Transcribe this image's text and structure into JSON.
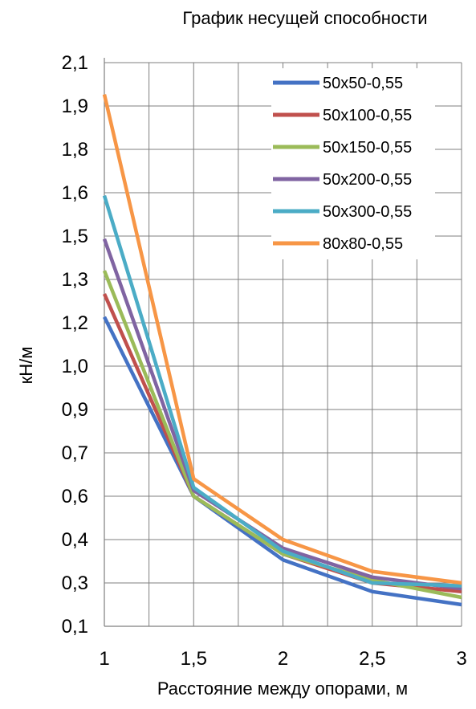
{
  "chart_data": {
    "type": "line",
    "title": "График несущей способности",
    "xlabel": "Расстояние между опорами, м",
    "ylabel": "кН/м",
    "x": [
      1,
      1.5,
      2,
      2.5,
      3
    ],
    "x_tick_labels": [
      "1",
      "1,5",
      "2",
      "2,5",
      "3"
    ],
    "xlim": [
      1,
      3
    ],
    "y_tick_labels": [
      "0,1",
      "0,3",
      "0,4",
      "0,6",
      "0,7",
      "0,9",
      "1,0",
      "1,2",
      "1,3",
      "1,5",
      "1,6",
      "1,8",
      "1,9",
      "2,1"
    ],
    "y_tick_values": [
      0.1,
      0.25,
      0.4,
      0.55,
      0.7,
      0.85,
      1.0,
      1.15,
      1.3,
      1.45,
      1.6,
      1.75,
      1.9,
      2.05
    ],
    "ylim": [
      0.1,
      2.05
    ],
    "grid": true,
    "legend_position": "top-right",
    "series": [
      {
        "name": "50x50-0,55",
        "color": "#4472C4",
        "values": [
          1.17,
          0.55,
          0.33,
          0.22,
          0.175
        ]
      },
      {
        "name": "50x100-0,55",
        "color": "#C0504D",
        "values": [
          1.25,
          0.55,
          0.35,
          0.25,
          0.22
        ]
      },
      {
        "name": "50x150-0,55",
        "color": "#9BBB59",
        "values": [
          1.33,
          0.55,
          0.35,
          0.26,
          0.2
        ]
      },
      {
        "name": "50x200-0,55",
        "color": "#8064A2",
        "values": [
          1.44,
          0.57,
          0.37,
          0.27,
          0.23
        ]
      },
      {
        "name": "50x300-0,55",
        "color": "#4BACC6",
        "values": [
          1.59,
          0.58,
          0.36,
          0.25,
          0.24
        ]
      },
      {
        "name": "80x80-0,55",
        "color": "#F79646",
        "values": [
          1.94,
          0.61,
          0.4,
          0.29,
          0.25
        ]
      }
    ]
  }
}
